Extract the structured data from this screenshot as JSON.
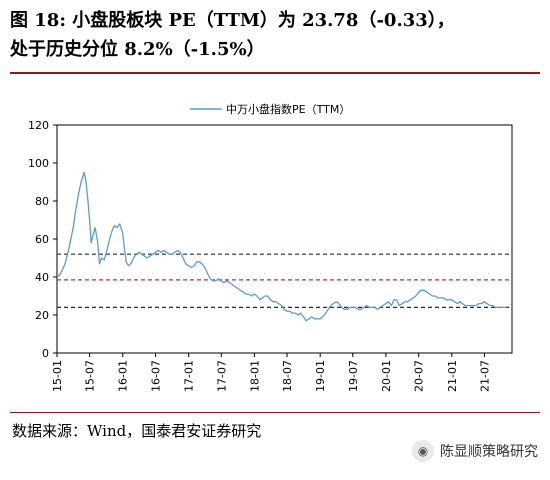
{
  "header": {
    "title_line1": "图 18:  小盘股板块 PE（TTM）为 23.78（-0.33），",
    "title_line2": "处于历史分位 8.2%（-1.5%）"
  },
  "footer": {
    "source": "数据来源：Wind，国泰君安证券研究",
    "watermark": "陈显顺策略研究",
    "watermark_icon": "wechat-icon"
  },
  "chart_data": {
    "type": "line",
    "ylim": [
      0,
      120
    ],
    "yticks": [
      0,
      20,
      40,
      60,
      80,
      100,
      120
    ],
    "xlim": [
      "2015-01",
      "2021-12"
    ],
    "xticks": [
      "15-01",
      "15-07",
      "16-01",
      "16-07",
      "17-01",
      "17-07",
      "18-01",
      "18-07",
      "19-01",
      "19-07",
      "20-01",
      "20-07",
      "21-01",
      "21-07"
    ],
    "legend_position": "top-center",
    "reference_lines": [
      {
        "value": 52,
        "color": "#1f2a44",
        "style": "dashed"
      },
      {
        "value": 38.5,
        "color": "#e02020",
        "style": "dashed"
      },
      {
        "value": 24,
        "color": "#1f2a44",
        "style": "dashed"
      }
    ],
    "series": [
      {
        "name": "中万小盘指数PE（TTM）",
        "color": "#5b9bd5",
        "points": [
          [
            "2015-01-01",
            40
          ],
          [
            "2015-01-15",
            41
          ],
          [
            "2015-02-01",
            44
          ],
          [
            "2015-02-15",
            47
          ],
          [
            "2015-03-01",
            52
          ],
          [
            "2015-03-15",
            58
          ],
          [
            "2015-04-01",
            66
          ],
          [
            "2015-04-15",
            75
          ],
          [
            "2015-05-01",
            84
          ],
          [
            "2015-05-15",
            90
          ],
          [
            "2015-06-01",
            95
          ],
          [
            "2015-06-10",
            91
          ],
          [
            "2015-06-20",
            82
          ],
          [
            "2015-07-01",
            70
          ],
          [
            "2015-07-10",
            58
          ],
          [
            "2015-07-20",
            62
          ],
          [
            "2015-08-01",
            66
          ],
          [
            "2015-08-15",
            58
          ],
          [
            "2015-08-25",
            47
          ],
          [
            "2015-09-05",
            50
          ],
          [
            "2015-09-20",
            49
          ],
          [
            "2015-10-05",
            54
          ],
          [
            "2015-10-20",
            60
          ],
          [
            "2015-11-01",
            64
          ],
          [
            "2015-11-15",
            67
          ],
          [
            "2015-12-01",
            66
          ],
          [
            "2015-12-15",
            68
          ],
          [
            "2016-01-01",
            63
          ],
          [
            "2016-01-10",
            55
          ],
          [
            "2016-01-20",
            48
          ],
          [
            "2016-02-01",
            46
          ],
          [
            "2016-02-15",
            47
          ],
          [
            "2016-03-01",
            50
          ],
          [
            "2016-03-15",
            52
          ],
          [
            "2016-04-01",
            53
          ],
          [
            "2016-04-15",
            52
          ],
          [
            "2016-05-01",
            51
          ],
          [
            "2016-05-15",
            50
          ],
          [
            "2016-06-01",
            51
          ],
          [
            "2016-06-15",
            52
          ],
          [
            "2016-07-01",
            53
          ],
          [
            "2016-07-15",
            54
          ],
          [
            "2016-08-01",
            53
          ],
          [
            "2016-08-15",
            54
          ],
          [
            "2016-09-01",
            53
          ],
          [
            "2016-09-15",
            52
          ],
          [
            "2016-10-01",
            52
          ],
          [
            "2016-10-15",
            53
          ],
          [
            "2016-11-01",
            54
          ],
          [
            "2016-11-15",
            53
          ],
          [
            "2016-12-01",
            50
          ],
          [
            "2016-12-15",
            47
          ],
          [
            "2017-01-01",
            46
          ],
          [
            "2017-01-15",
            45
          ],
          [
            "2017-02-01",
            46
          ],
          [
            "2017-02-15",
            48
          ],
          [
            "2017-03-01",
            48
          ],
          [
            "2017-03-15",
            47
          ],
          [
            "2017-04-01",
            45
          ],
          [
            "2017-04-15",
            42
          ],
          [
            "2017-05-01",
            39
          ],
          [
            "2017-05-15",
            38
          ],
          [
            "2017-06-01",
            38
          ],
          [
            "2017-06-15",
            39
          ],
          [
            "2017-07-01",
            38
          ],
          [
            "2017-07-15",
            37
          ],
          [
            "2017-08-01",
            38
          ],
          [
            "2017-08-15",
            37
          ],
          [
            "2017-09-01",
            36
          ],
          [
            "2017-09-15",
            35
          ],
          [
            "2017-10-01",
            34
          ],
          [
            "2017-10-15",
            33
          ],
          [
            "2017-11-01",
            32
          ],
          [
            "2017-11-15",
            31
          ],
          [
            "2017-12-01",
            31
          ],
          [
            "2017-12-15",
            30
          ],
          [
            "2018-01-01",
            31
          ],
          [
            "2018-01-15",
            30
          ],
          [
            "2018-02-01",
            28
          ],
          [
            "2018-02-15",
            29
          ],
          [
            "2018-03-01",
            30
          ],
          [
            "2018-03-15",
            30
          ],
          [
            "2018-04-01",
            28
          ],
          [
            "2018-04-15",
            27
          ],
          [
            "2018-05-01",
            27
          ],
          [
            "2018-05-15",
            26
          ],
          [
            "2018-06-01",
            25
          ],
          [
            "2018-06-15",
            23
          ],
          [
            "2018-07-01",
            22
          ],
          [
            "2018-07-15",
            22
          ],
          [
            "2018-08-01",
            21
          ],
          [
            "2018-08-15",
            21
          ],
          [
            "2018-09-01",
            20
          ],
          [
            "2018-09-15",
            21
          ],
          [
            "2018-10-01",
            19
          ],
          [
            "2018-10-15",
            17
          ],
          [
            "2018-11-01",
            18
          ],
          [
            "2018-11-15",
            19
          ],
          [
            "2018-12-01",
            18
          ],
          [
            "2018-12-15",
            18
          ],
          [
            "2019-01-01",
            18
          ],
          [
            "2019-01-15",
            19
          ],
          [
            "2019-02-01",
            21
          ],
          [
            "2019-02-15",
            23
          ],
          [
            "2019-03-01",
            25
          ],
          [
            "2019-03-15",
            26
          ],
          [
            "2019-04-01",
            27
          ],
          [
            "2019-04-15",
            26
          ],
          [
            "2019-05-01",
            24
          ],
          [
            "2019-05-15",
            23
          ],
          [
            "2019-06-01",
            23
          ],
          [
            "2019-06-15",
            24
          ],
          [
            "2019-07-01",
            24
          ],
          [
            "2019-07-15",
            24
          ],
          [
            "2019-08-01",
            23
          ],
          [
            "2019-08-15",
            23
          ],
          [
            "2019-09-01",
            24
          ],
          [
            "2019-09-15",
            25
          ],
          [
            "2019-10-01",
            24
          ],
          [
            "2019-10-15",
            24
          ],
          [
            "2019-11-01",
            24
          ],
          [
            "2019-11-15",
            23
          ],
          [
            "2019-12-01",
            24
          ],
          [
            "2019-12-15",
            25
          ],
          [
            "2020-01-01",
            26
          ],
          [
            "2020-01-15",
            27
          ],
          [
            "2020-02-01",
            25
          ],
          [
            "2020-02-15",
            28
          ],
          [
            "2020-03-01",
            28
          ],
          [
            "2020-03-15",
            25
          ],
          [
            "2020-04-01",
            26
          ],
          [
            "2020-04-15",
            27
          ],
          [
            "2020-05-01",
            27
          ],
          [
            "2020-05-15",
            28
          ],
          [
            "2020-06-01",
            29
          ],
          [
            "2020-06-15",
            30
          ],
          [
            "2020-07-01",
            32
          ],
          [
            "2020-07-15",
            33
          ],
          [
            "2020-08-01",
            33
          ],
          [
            "2020-08-15",
            32
          ],
          [
            "2020-09-01",
            31
          ],
          [
            "2020-09-15",
            30
          ],
          [
            "2020-10-01",
            30
          ],
          [
            "2020-10-15",
            29
          ],
          [
            "2020-11-01",
            29
          ],
          [
            "2020-11-15",
            29
          ],
          [
            "2020-12-01",
            28
          ],
          [
            "2020-12-15",
            28
          ],
          [
            "2021-01-01",
            28
          ],
          [
            "2021-01-15",
            27
          ],
          [
            "2021-02-01",
            26
          ],
          [
            "2021-02-15",
            27
          ],
          [
            "2021-03-01",
            26
          ],
          [
            "2021-03-15",
            25
          ],
          [
            "2021-04-01",
            25
          ],
          [
            "2021-04-15",
            25
          ],
          [
            "2021-05-01",
            25
          ],
          [
            "2021-05-15",
            25
          ],
          [
            "2021-06-01",
            26
          ],
          [
            "2021-06-15",
            26
          ],
          [
            "2021-07-01",
            27
          ],
          [
            "2021-07-15",
            26
          ],
          [
            "2021-08-01",
            25
          ],
          [
            "2021-08-15",
            25
          ],
          [
            "2021-09-01",
            24
          ],
          [
            "2021-09-15",
            24
          ],
          [
            "2021-10-01",
            24
          ],
          [
            "2021-10-15",
            24
          ],
          [
            "2021-11-01",
            24
          ]
        ]
      }
    ]
  }
}
